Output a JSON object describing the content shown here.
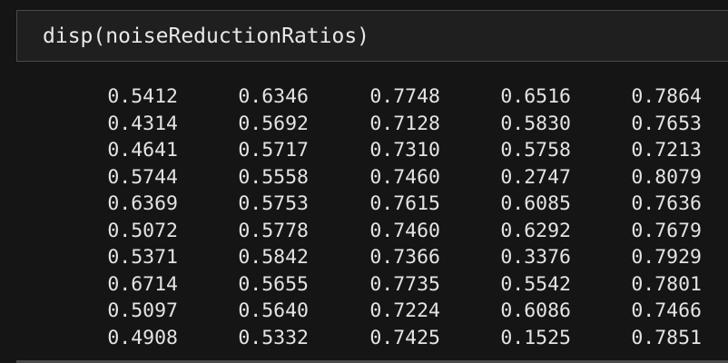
{
  "input_cell": {
    "code": "disp(noiseReductionRatios)"
  },
  "output": {
    "rows": [
      [
        "0.5412",
        "0.6346",
        "0.7748",
        "0.6516",
        "0.7864"
      ],
      [
        "0.4314",
        "0.5692",
        "0.7128",
        "0.5830",
        "0.7653"
      ],
      [
        "0.4641",
        "0.5717",
        "0.7310",
        "0.5758",
        "0.7213"
      ],
      [
        "0.5744",
        "0.5558",
        "0.7460",
        "0.2747",
        "0.8079"
      ],
      [
        "0.6369",
        "0.5753",
        "0.7615",
        "0.6085",
        "0.7636"
      ],
      [
        "0.5072",
        "0.5778",
        "0.7460",
        "0.6292",
        "0.7679"
      ],
      [
        "0.5371",
        "0.5842",
        "0.7366",
        "0.3376",
        "0.7929"
      ],
      [
        "0.6714",
        "0.5655",
        "0.7735",
        "0.5542",
        "0.7801"
      ],
      [
        "0.5097",
        "0.5640",
        "0.7224",
        "0.6086",
        "0.7466"
      ],
      [
        "0.4908",
        "0.5332",
        "0.7425",
        "0.1525",
        "0.7851"
      ]
    ]
  },
  "colors": {
    "background": "#151515",
    "input_background": "#1f1f1f",
    "border": "#4a4a4a",
    "text": "#e4e4e4"
  }
}
